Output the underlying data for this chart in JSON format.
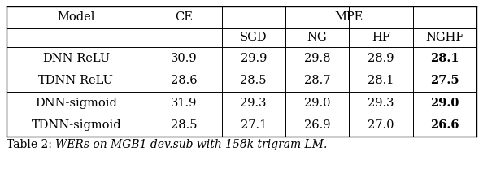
{
  "caption_prefix": "Table 2: ",
  "caption_body": "WERs on MGB1 dev.sub with 158k trigram LM.",
  "header_row1": [
    "Model",
    "CE",
    "MPE"
  ],
  "header_row2": [
    "",
    "",
    "SGD",
    "NG",
    "HF",
    "NGHF"
  ],
  "rows": [
    [
      "DNN-ReLU",
      "30.9",
      "29.9",
      "29.8",
      "28.9",
      "28.1"
    ],
    [
      "TDNN-ReLU",
      "28.6",
      "28.5",
      "28.7",
      "28.1",
      "27.5"
    ],
    [
      "DNN-sigmoid",
      "31.9",
      "29.3",
      "29.0",
      "29.3",
      "29.0"
    ],
    [
      "TDNN-sigmoid",
      "28.5",
      "27.1",
      "26.9",
      "27.0",
      "26.6"
    ]
  ],
  "bold_col": 5,
  "figsize": [
    5.94,
    2.08
  ],
  "dpi": 100,
  "font_size": 10.5,
  "caption_font_size": 10.0
}
